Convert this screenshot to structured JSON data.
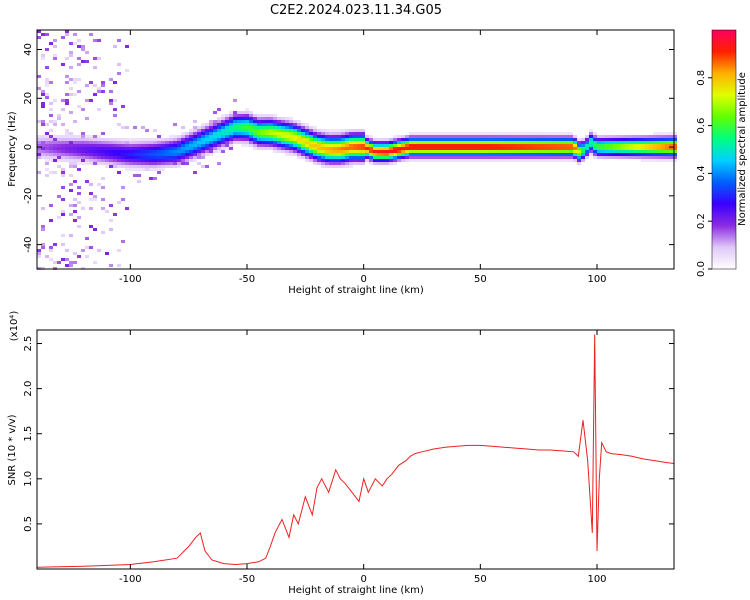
{
  "figure": {
    "title": "C2E2.2024.023.11.34.G05"
  },
  "chart_data": [
    {
      "type": "heatmap",
      "panel": "top",
      "xlabel": "Height of straight line (km)",
      "ylabel": "Frequency (Hz)",
      "xlim": [
        -140,
        133
      ],
      "ylim": [
        -50,
        48
      ],
      "x_ticks": [
        "-100",
        "-50",
        "0",
        "50",
        "100"
      ],
      "y_ticks": [
        "-40",
        "-20",
        "0",
        "20",
        "40"
      ],
      "colorbar": {
        "label": "Normalized spectral amplitude",
        "range": [
          0.0,
          1.0
        ],
        "ticks": [
          "0.0",
          "0.2",
          "0.4",
          "0.6",
          "0.8"
        ],
        "colormap": [
          "#ffffff",
          "#e0c8f8",
          "#8a2be2",
          "#3a00ff",
          "#0060ff",
          "#00d0ff",
          "#00ff80",
          "#60ff00",
          "#e0ff00",
          "#ffb000",
          "#ff2000",
          "#ff0060"
        ]
      },
      "ridge_center_hz": {
        "x": [
          -140,
          -120,
          -100,
          -90,
          -80,
          -70,
          -60,
          -55,
          -50,
          -45,
          -40,
          -35,
          -30,
          -25,
          -20,
          -15,
          -10,
          -5,
          0,
          5,
          10,
          20,
          40,
          60,
          80,
          90,
          92,
          95,
          97,
          100,
          110,
          120,
          133
        ],
        "y": [
          0,
          -1,
          -3,
          -3,
          -2,
          2,
          6,
          8,
          8,
          6,
          6,
          5,
          4,
          2,
          0,
          -1,
          -1,
          0,
          0,
          -2,
          -2,
          0,
          0,
          0,
          0,
          0,
          -2,
          -1,
          2,
          0,
          0,
          0,
          0
        ]
      },
      "ridge_peak_amplitude": {
        "x": [
          -140,
          -100,
          -60,
          -40,
          -20,
          0,
          10,
          50,
          90,
          95,
          100,
          133
        ],
        "y": [
          0.15,
          0.3,
          0.5,
          0.7,
          0.8,
          0.9,
          0.95,
          0.95,
          0.9,
          0.5,
          0.6,
          0.9
        ]
      }
    },
    {
      "type": "line",
      "panel": "bottom",
      "xlabel": "Height of straight line (km)",
      "ylabel": "SNR (10 * v/v)",
      "y_multiplier": "(x10⁴)",
      "xlim": [
        -140,
        133
      ],
      "ylim": [
        0,
        2.65
      ],
      "x_ticks": [
        "-100",
        "-50",
        "0",
        "50",
        "100"
      ],
      "y_ticks": [
        "0.5",
        "1.0",
        "1.5",
        "2.0",
        "2.5"
      ],
      "series": [
        {
          "color": "#ee2020",
          "x": [
            -140,
            -120,
            -100,
            -90,
            -80,
            -75,
            -72,
            -70,
            -68,
            -65,
            -60,
            -55,
            -50,
            -45,
            -42,
            -40,
            -38,
            -35,
            -32,
            -30,
            -28,
            -25,
            -22,
            -20,
            -18,
            -15,
            -12,
            -10,
            -8,
            -5,
            -2,
            0,
            2,
            5,
            8,
            10,
            12,
            15,
            18,
            20,
            22,
            25,
            30,
            35,
            40,
            45,
            50,
            55,
            60,
            65,
            70,
            75,
            80,
            85,
            90,
            92,
            94,
            96,
            98,
            99,
            100,
            101,
            102,
            104,
            106,
            110,
            115,
            120,
            125,
            130,
            133
          ],
          "y": [
            0.02,
            0.03,
            0.05,
            0.08,
            0.12,
            0.25,
            0.35,
            0.4,
            0.2,
            0.1,
            0.06,
            0.05,
            0.06,
            0.08,
            0.12,
            0.25,
            0.4,
            0.55,
            0.35,
            0.6,
            0.5,
            0.8,
            0.6,
            0.9,
            1.0,
            0.85,
            1.1,
            1.0,
            0.95,
            0.85,
            0.75,
            1.0,
            0.85,
            1.0,
            0.92,
            1.0,
            1.05,
            1.15,
            1.2,
            1.25,
            1.28,
            1.3,
            1.33,
            1.35,
            1.36,
            1.37,
            1.37,
            1.36,
            1.35,
            1.34,
            1.33,
            1.32,
            1.32,
            1.31,
            1.3,
            1.25,
            1.65,
            1.2,
            0.4,
            2.6,
            0.2,
            1.0,
            1.4,
            1.3,
            1.28,
            1.27,
            1.25,
            1.22,
            1.2,
            1.18,
            1.17
          ]
        }
      ]
    }
  ]
}
